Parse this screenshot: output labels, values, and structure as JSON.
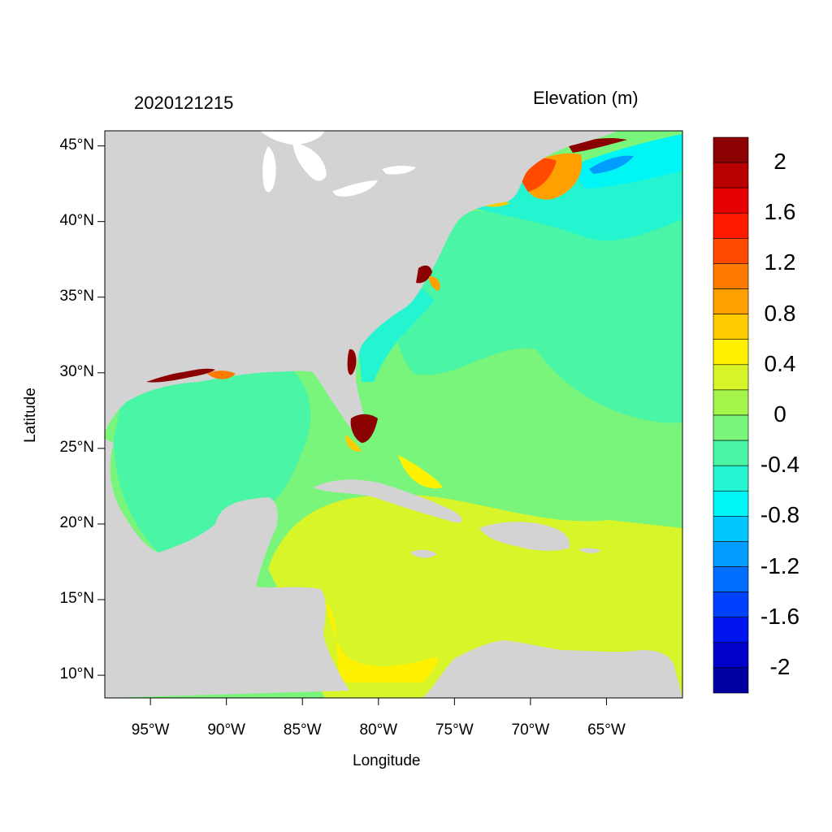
{
  "header": {
    "timestamp": "2020121215",
    "variable_title": "Elevation (m)"
  },
  "axes": {
    "xlabel": "Longitude",
    "ylabel": "Latitude",
    "x_ticks": [
      "95°W",
      "90°W",
      "85°W",
      "80°W",
      "75°W",
      "70°W",
      "65°W"
    ],
    "y_ticks": [
      "45°N",
      "40°N",
      "35°N",
      "30°N",
      "25°N",
      "20°N",
      "15°N",
      "10°N"
    ],
    "x_tick_values": [
      -95,
      -90,
      -85,
      -80,
      -75,
      -70,
      -65
    ],
    "y_tick_values": [
      45,
      40,
      35,
      30,
      25,
      20,
      15,
      10
    ],
    "lon_range": [
      -98,
      -60
    ],
    "lat_range": [
      8.5,
      46
    ]
  },
  "colorbar": {
    "labels": [
      "2",
      "1.6",
      "1.2",
      "0.8",
      "0.4",
      "0",
      "-0.4",
      "-0.8",
      "-1.2",
      "-1.6",
      "-2"
    ],
    "colors_top_to_bottom": [
      "#8b0000",
      "#b80000",
      "#e60000",
      "#ff1a00",
      "#ff4a00",
      "#ff7a00",
      "#ffa000",
      "#ffcc00",
      "#fff200",
      "#d8f52a",
      "#a6f54a",
      "#78f57a",
      "#4af5a6",
      "#24f5d0",
      "#00f5f5",
      "#00c8ff",
      "#009cff",
      "#006eff",
      "#0040ff",
      "#0014f0",
      "#0000c8",
      "#0000a0"
    ]
  },
  "colors": {
    "land": "#d3d3d3",
    "lakes": "#ffffff"
  }
}
